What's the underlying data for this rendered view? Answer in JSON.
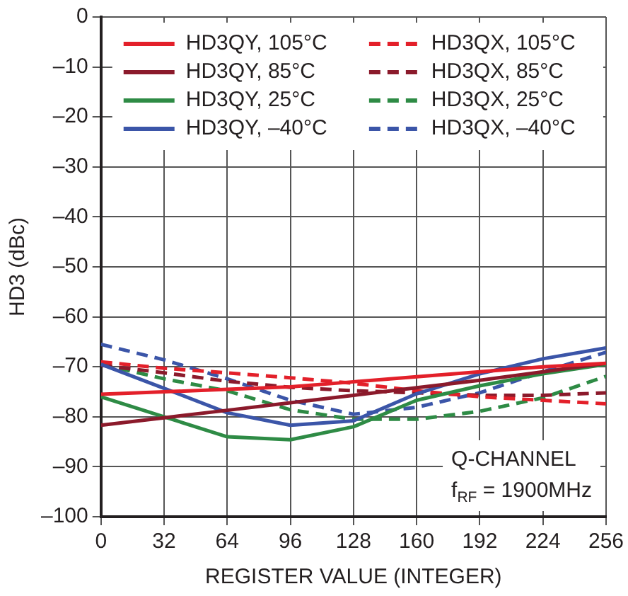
{
  "chart_data": {
    "type": "line",
    "xlabel": "REGISTER VALUE (INTEGER)",
    "ylabel": "HD3 (dBc)",
    "x": [
      0,
      32,
      64,
      96,
      128,
      160,
      192,
      224,
      256
    ],
    "xlim": [
      0,
      256
    ],
    "xticks": [
      0,
      32,
      64,
      96,
      128,
      160,
      192,
      224,
      256
    ],
    "ylim": [
      -100,
      0
    ],
    "yticks": [
      0,
      {
        "value": -10,
        "label": "–10"
      },
      {
        "value": -20,
        "label": "–20"
      },
      {
        "value": -30,
        "label": "–30"
      },
      {
        "value": -40,
        "label": "–40"
      },
      {
        "value": -50,
        "label": "–50"
      },
      {
        "value": -60,
        "label": "–60"
      },
      {
        "value": -70,
        "label": "–70"
      },
      {
        "value": -80,
        "label": "–80"
      },
      {
        "value": -90,
        "label": "–90"
      },
      {
        "value": -100,
        "label": "–100"
      }
    ],
    "grid": true,
    "legend": "top",
    "marker": "none",
    "annotations": [
      "Q-CHANNEL",
      "f$_{RF}$ = 1900MHz"
    ],
    "series": [
      {
        "name": "HD3QY, 105°C",
        "color": "#e3202a",
        "line_style": "solid",
        "values": [
          -75.5,
          -75,
          -74.5,
          -74,
          -73,
          -72,
          -71,
          -70,
          -69.3
        ]
      },
      {
        "name": "HD3QY, 85°C",
        "color": "#8b1a2b",
        "line_style": "solid",
        "values": [
          -81.7,
          -80.2,
          -78.7,
          -77.2,
          -75.7,
          -74.2,
          -72.7,
          -71,
          -69.3
        ]
      },
      {
        "name": "HD3QY, 25°C",
        "color": "#2e8b45",
        "line_style": "solid",
        "values": [
          -76,
          -80,
          -84,
          -84.6,
          -82,
          -76.7,
          -73.8,
          -71.4,
          -69.5
        ]
      },
      {
        "name": "HD3QY, –40°C",
        "color": "#3b55a8",
        "line_style": "solid",
        "values": [
          -69.5,
          -74.3,
          -79.2,
          -81.7,
          -80.8,
          -75.4,
          -71.4,
          -68.4,
          -66.2
        ]
      },
      {
        "name": "HD3QX, 105°C",
        "color": "#e3202a",
        "line_style": "dashed",
        "values": [
          -69,
          -70.3,
          -71.2,
          -72.2,
          -73.3,
          -74.8,
          -76,
          -76.7,
          -77.4
        ]
      },
      {
        "name": "HD3QX, 85°C",
        "color": "#8b1a2b",
        "line_style": "dashed",
        "values": [
          -69.7,
          -71.2,
          -72.9,
          -74.1,
          -74.8,
          -75.2,
          -75.7,
          -75.7,
          -75.2
        ]
      },
      {
        "name": "HD3QX, 25°C",
        "color": "#2e8b45",
        "line_style": "dashed",
        "values": [
          -69.5,
          -72.4,
          -74.8,
          -78.6,
          -80.5,
          -80.5,
          -78.9,
          -76.2,
          -71.9
        ]
      },
      {
        "name": "HD3QX, –40°C",
        "color": "#3b55a8",
        "line_style": "dashed",
        "values": [
          -65.5,
          -68.6,
          -72.4,
          -76.7,
          -79.5,
          -78.1,
          -75.2,
          -71,
          -67.1
        ]
      }
    ]
  }
}
